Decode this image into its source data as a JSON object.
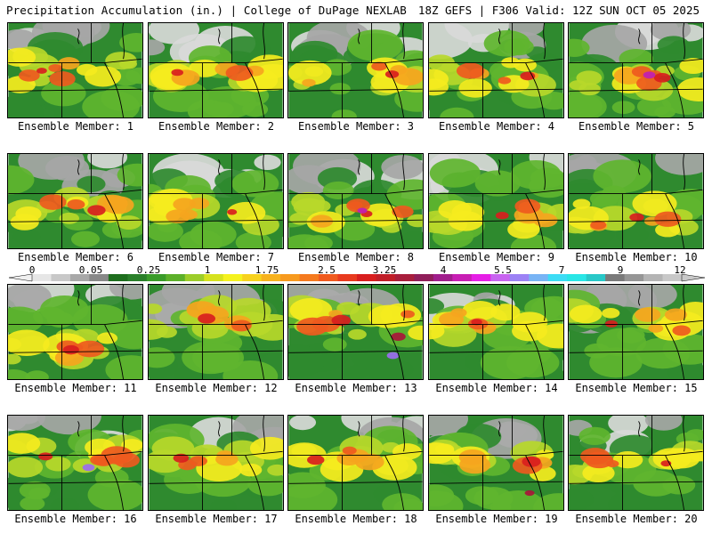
{
  "header": {
    "title": "Precipitation Accumulation (in.) | College of DuPage NEXLAB",
    "run_info": "18Z GEFS | F306 Valid: 12Z SUN OCT 05 2025"
  },
  "colorbar": {
    "labels": [
      "0",
      "0.05",
      "0.25",
      "1",
      "1.75",
      "2.5",
      "3.25",
      "4",
      "5.5",
      "7",
      "9",
      "12"
    ],
    "colors": [
      "#e6e6e6",
      "#c8c8c8",
      "#a8a8a8",
      "#888888",
      "#1e6e1e",
      "#2a7f2a",
      "#3a9b2a",
      "#5cb02a",
      "#9ccd2a",
      "#d6e21e",
      "#f5f21e",
      "#f7d21e",
      "#f7b21e",
      "#f79a1e",
      "#f57a1e",
      "#f05a1e",
      "#e83a1e",
      "#d81e1e",
      "#c01e28",
      "#a81e3c",
      "#901e5a",
      "#a01e8c",
      "#c81eb4",
      "#e61ee6",
      "#c864f0",
      "#9c82f5",
      "#78b4f5",
      "#3cdcf5",
      "#28e6e6",
      "#28c8c8",
      "#7a7a7a",
      "#969696",
      "#b4b4b4",
      "#c8c8c8"
    ]
  },
  "members": [
    {
      "label": "Ensemble Member: 1"
    },
    {
      "label": "Ensemble Member: 2"
    },
    {
      "label": "Ensemble Member: 3"
    },
    {
      "label": "Ensemble Member: 4"
    },
    {
      "label": "Ensemble Member: 5"
    },
    {
      "label": "Ensemble Member: 6"
    },
    {
      "label": "Ensemble Member: 7"
    },
    {
      "label": "Ensemble Member: 8"
    },
    {
      "label": "Ensemble Member: 9"
    },
    {
      "label": "Ensemble Member: 10"
    },
    {
      "label": "Ensemble Member: 11"
    },
    {
      "label": "Ensemble Member: 12"
    },
    {
      "label": "Ensemble Member: 13"
    },
    {
      "label": "Ensemble Member: 14"
    },
    {
      "label": "Ensemble Member: 15"
    },
    {
      "label": "Ensemble Member: 16"
    },
    {
      "label": "Ensemble Member: 17"
    },
    {
      "label": "Ensemble Member: 18"
    },
    {
      "label": "Ensemble Member: 19"
    },
    {
      "label": "Ensemble Member: 20"
    }
  ],
  "palette": {
    "light_gray": "#d9d9d9",
    "mid_gray": "#a6a6a6",
    "dark_green": "#1f6e24",
    "green": "#2f8a2f",
    "light_green": "#5fb52f",
    "yellow_green": "#b7d82a",
    "yellow": "#f5ec1e",
    "orange": "#f5a51e",
    "red_orange": "#ee5a1e",
    "red": "#d81e1e",
    "dark_red": "#a8163a",
    "magenta": "#c01eb4",
    "violet": "#9c6cf0"
  }
}
